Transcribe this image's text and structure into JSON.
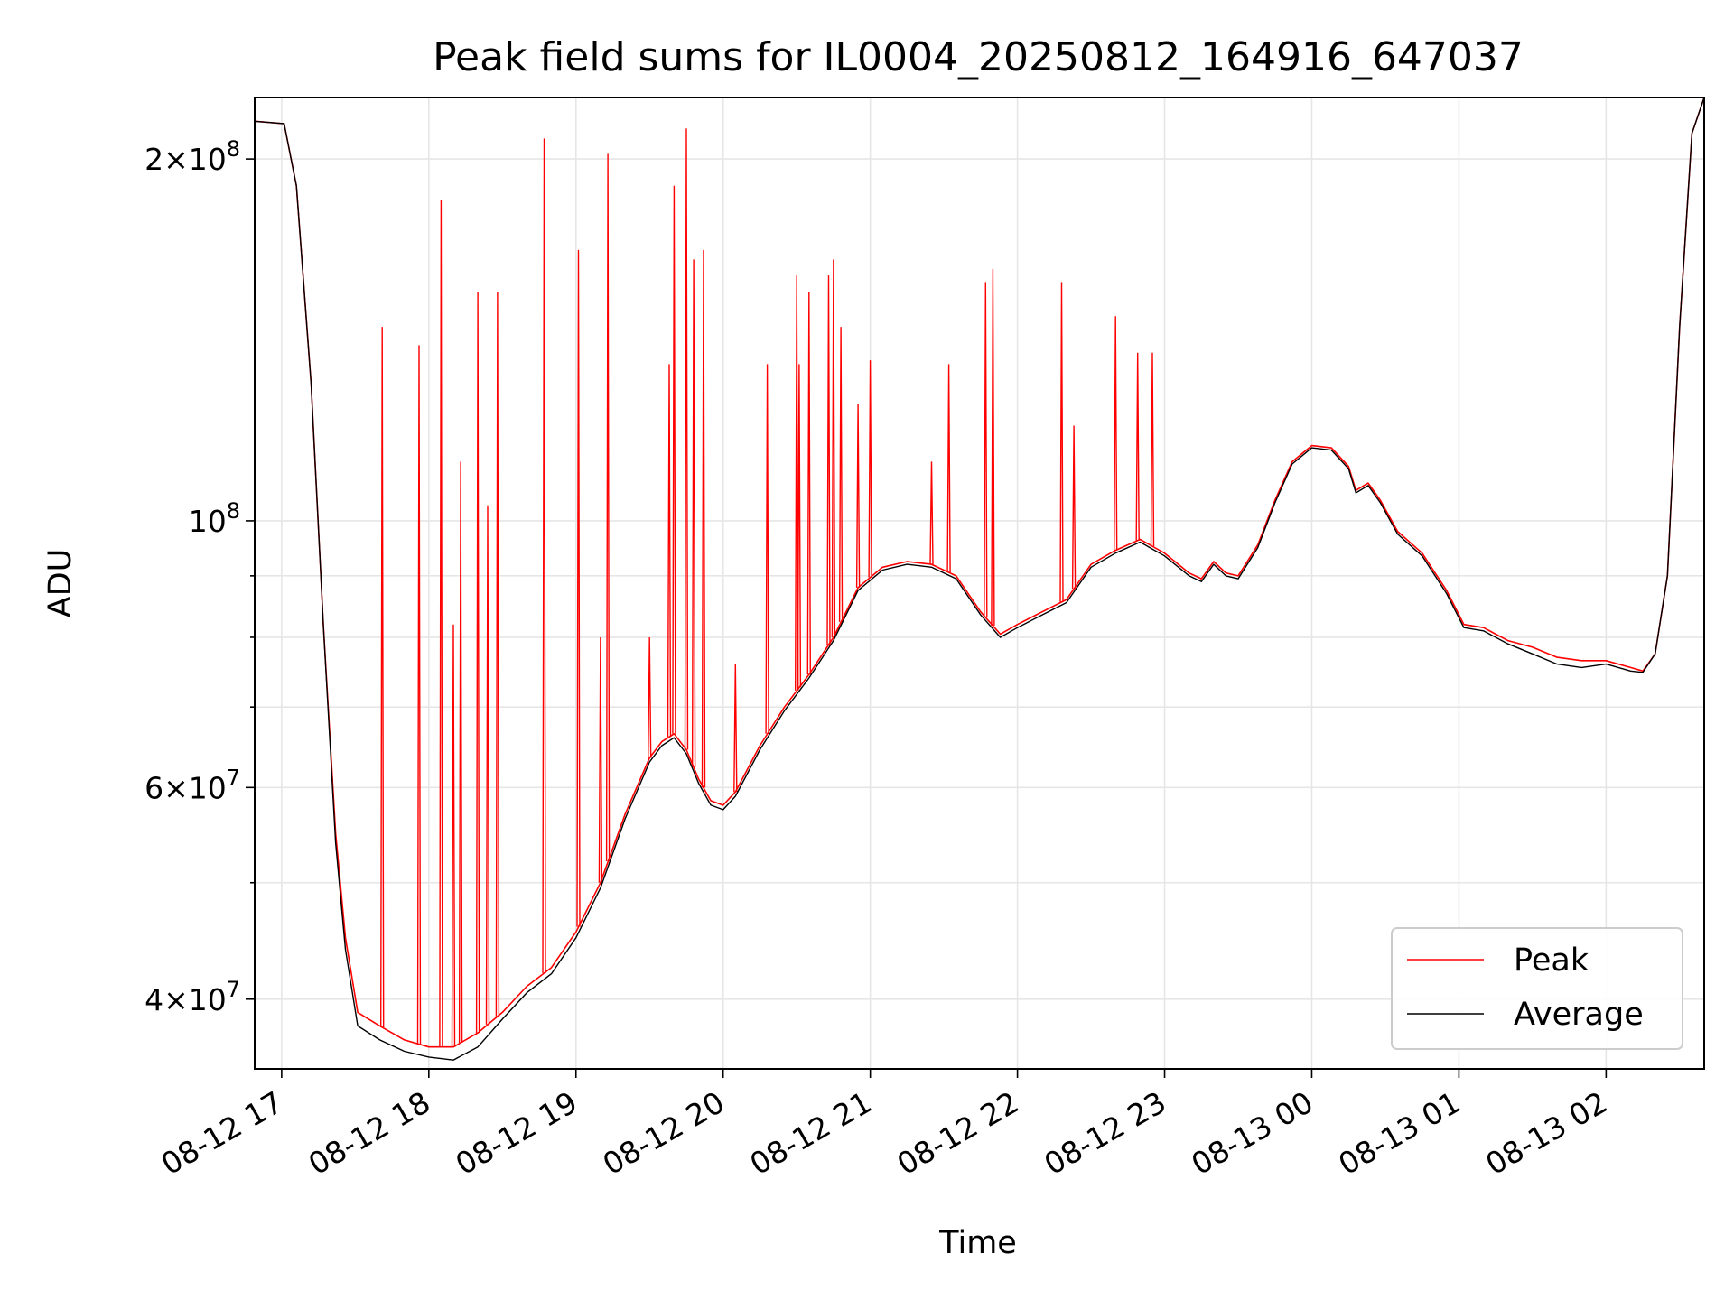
{
  "chart_data": {
    "type": "line",
    "title": "Peak field sums for IL0004_20250812_164916_647037",
    "xlabel": "Time",
    "ylabel": "ADU",
    "y_scale": "log",
    "ylim": [
      35000000,
      225000000
    ],
    "xlim": [
      "2025-08-12 16:49",
      "2025-08-13 02:40"
    ],
    "grid": true,
    "legend_position": "lower-right",
    "x_ticks": [
      {
        "t": "2025-08-12 17:00",
        "label": "08-12 17"
      },
      {
        "t": "2025-08-12 18:00",
        "label": "08-12 18"
      },
      {
        "t": "2025-08-12 19:00",
        "label": "08-12 19"
      },
      {
        "t": "2025-08-12 20:00",
        "label": "08-12 20"
      },
      {
        "t": "2025-08-12 21:00",
        "label": "08-12 21"
      },
      {
        "t": "2025-08-12 22:00",
        "label": "08-12 22"
      },
      {
        "t": "2025-08-12 23:00",
        "label": "08-12 23"
      },
      {
        "t": "2025-08-13 00:00",
        "label": "08-13 00"
      },
      {
        "t": "2025-08-13 01:00",
        "label": "08-13 01"
      },
      {
        "t": "2025-08-13 02:00",
        "label": "08-13 02"
      }
    ],
    "y_ticks": [
      {
        "v": 40000000,
        "mant": "4",
        "exp": "7"
      },
      {
        "v": 60000000,
        "mant": "6",
        "exp": "7"
      },
      {
        "v": 100000000,
        "mant": "",
        "exp": "8"
      },
      {
        "v": 200000000,
        "mant": "2",
        "exp": "8"
      }
    ],
    "y_minor_ticks": [
      50000000,
      70000000,
      80000000,
      90000000
    ],
    "series": [
      {
        "name": "Peak",
        "color": "#ff0000",
        "baseline": [
          [
            "2025-08-12 16:49",
            215000000
          ],
          [
            "2025-08-12 17:01",
            214000000
          ],
          [
            "2025-08-12 17:06",
            190000000
          ],
          [
            "2025-08-12 17:12",
            130000000
          ],
          [
            "2025-08-12 17:17",
            82000000
          ],
          [
            "2025-08-12 17:22",
            55000000
          ],
          [
            "2025-08-12 17:26",
            45000000
          ],
          [
            "2025-08-12 17:31",
            39000000
          ],
          [
            "2025-08-12 17:40",
            38000000
          ],
          [
            "2025-08-12 17:50",
            37000000
          ],
          [
            "2025-08-12 18:00",
            36500000
          ],
          [
            "2025-08-12 18:10",
            36500000
          ],
          [
            "2025-08-12 18:20",
            37500000
          ],
          [
            "2025-08-12 18:30",
            39000000
          ],
          [
            "2025-08-12 18:40",
            41000000
          ],
          [
            "2025-08-12 18:50",
            42500000
          ],
          [
            "2025-08-12 19:00",
            45500000
          ],
          [
            "2025-08-12 19:10",
            50000000
          ],
          [
            "2025-08-12 19:20",
            57000000
          ],
          [
            "2025-08-12 19:30",
            63500000
          ],
          [
            "2025-08-12 19:35",
            65500000
          ],
          [
            "2025-08-12 19:40",
            66500000
          ],
          [
            "2025-08-12 19:45",
            64500000
          ],
          [
            "2025-08-12 19:50",
            61000000
          ],
          [
            "2025-08-12 19:55",
            58500000
          ],
          [
            "2025-08-12 20:00",
            58000000
          ],
          [
            "2025-08-12 20:05",
            59500000
          ],
          [
            "2025-08-12 20:15",
            65000000
          ],
          [
            "2025-08-12 20:25",
            70000000
          ],
          [
            "2025-08-12 20:35",
            74500000
          ],
          [
            "2025-08-12 20:45",
            80000000
          ],
          [
            "2025-08-12 20:55",
            88000000
          ],
          [
            "2025-08-12 21:05",
            91500000
          ],
          [
            "2025-08-12 21:15",
            92500000
          ],
          [
            "2025-08-12 21:25",
            92000000
          ],
          [
            "2025-08-12 21:35",
            90000000
          ],
          [
            "2025-08-12 21:45",
            84000000
          ],
          [
            "2025-08-12 21:53",
            80500000
          ],
          [
            "2025-08-12 22:00",
            82000000
          ],
          [
            "2025-08-12 22:10",
            84000000
          ],
          [
            "2025-08-12 22:20",
            86000000
          ],
          [
            "2025-08-12 22:30",
            92000000
          ],
          [
            "2025-08-12 22:40",
            94500000
          ],
          [
            "2025-08-12 22:50",
            96500000
          ],
          [
            "2025-08-12 23:00",
            94000000
          ],
          [
            "2025-08-12 23:10",
            90500000
          ],
          [
            "2025-08-12 23:15",
            89500000
          ],
          [
            "2025-08-12 23:20",
            92500000
          ],
          [
            "2025-08-12 23:25",
            90500000
          ],
          [
            "2025-08-12 23:30",
            90000000
          ],
          [
            "2025-08-12 23:38",
            95500000
          ],
          [
            "2025-08-12 23:45",
            104000000
          ],
          [
            "2025-08-12 23:52",
            112000000
          ],
          [
            "2025-08-13 00:00",
            115500000
          ],
          [
            "2025-08-13 00:08",
            115000000
          ],
          [
            "2025-08-13 00:15",
            111000000
          ],
          [
            "2025-08-13 00:18",
            106000000
          ],
          [
            "2025-08-13 00:23",
            107500000
          ],
          [
            "2025-08-13 00:28",
            104000000
          ],
          [
            "2025-08-13 00:35",
            98000000
          ],
          [
            "2025-08-13 00:45",
            94000000
          ],
          [
            "2025-08-13 00:55",
            87500000
          ],
          [
            "2025-08-13 01:02",
            82000000
          ],
          [
            "2025-08-13 01:10",
            81500000
          ],
          [
            "2025-08-13 01:20",
            79500000
          ],
          [
            "2025-08-13 01:30",
            78500000
          ],
          [
            "2025-08-13 01:40",
            77000000
          ],
          [
            "2025-08-13 01:50",
            76500000
          ],
          [
            "2025-08-13 02:00",
            76500000
          ],
          [
            "2025-08-13 02:10",
            75500000
          ],
          [
            "2025-08-13 02:15",
            75000000
          ],
          [
            "2025-08-13 02:20",
            77500000
          ],
          [
            "2025-08-13 02:25",
            90000000
          ],
          [
            "2025-08-13 02:30",
            145000000
          ],
          [
            "2025-08-13 02:35",
            210000000
          ],
          [
            "2025-08-13 02:40",
            225000000
          ]
        ],
        "spikes": [
          [
            "2025-08-12 17:41",
            145000000
          ],
          [
            "2025-08-12 17:56",
            140000000
          ],
          [
            "2025-08-12 18:05",
            185000000
          ],
          [
            "2025-08-12 18:10",
            82000000
          ],
          [
            "2025-08-12 18:13",
            112000000
          ],
          [
            "2025-08-12 18:20",
            155000000
          ],
          [
            "2025-08-12 18:24",
            103000000
          ],
          [
            "2025-08-12 18:28",
            155000000
          ],
          [
            "2025-08-12 18:47",
            208000000
          ],
          [
            "2025-08-12 19:01",
            168000000
          ],
          [
            "2025-08-12 19:10",
            80000000
          ],
          [
            "2025-08-12 19:13",
            202000000
          ],
          [
            "2025-08-12 19:30",
            80000000
          ],
          [
            "2025-08-12 19:38",
            135000000
          ],
          [
            "2025-08-12 19:40",
            190000000
          ],
          [
            "2025-08-12 19:45",
            212000000
          ],
          [
            "2025-08-12 19:48",
            165000000
          ],
          [
            "2025-08-12 19:52",
            168000000
          ],
          [
            "2025-08-12 20:05",
            76000000
          ],
          [
            "2025-08-12 20:18",
            135000000
          ],
          [
            "2025-08-12 20:30",
            160000000
          ],
          [
            "2025-08-12 20:31",
            135000000
          ],
          [
            "2025-08-12 20:35",
            155000000
          ],
          [
            "2025-08-12 20:43",
            160000000
          ],
          [
            "2025-08-12 20:45",
            165000000
          ],
          [
            "2025-08-12 20:48",
            145000000
          ],
          [
            "2025-08-12 20:55",
            125000000
          ],
          [
            "2025-08-12 21:00",
            136000000
          ],
          [
            "2025-08-12 21:25",
            112000000
          ],
          [
            "2025-08-12 21:32",
            135000000
          ],
          [
            "2025-08-12 21:47",
            158000000
          ],
          [
            "2025-08-12 21:50",
            162000000
          ],
          [
            "2025-08-12 22:18",
            158000000
          ],
          [
            "2025-08-12 22:23",
            120000000
          ],
          [
            "2025-08-12 22:40",
            148000000
          ],
          [
            "2025-08-12 22:49",
            138000000
          ],
          [
            "2025-08-12 22:55",
            138000000
          ]
        ]
      },
      {
        "name": "Average",
        "color": "#000000",
        "baseline": [
          [
            "2025-08-12 16:49",
            215000000
          ],
          [
            "2025-08-12 17:01",
            214000000
          ],
          [
            "2025-08-12 17:06",
            190000000
          ],
          [
            "2025-08-12 17:12",
            130000000
          ],
          [
            "2025-08-12 17:17",
            82000000
          ],
          [
            "2025-08-12 17:22",
            54000000
          ],
          [
            "2025-08-12 17:26",
            44000000
          ],
          [
            "2025-08-12 17:31",
            38000000
          ],
          [
            "2025-08-12 17:40",
            37000000
          ],
          [
            "2025-08-12 17:50",
            36200000
          ],
          [
            "2025-08-12 18:00",
            35800000
          ],
          [
            "2025-08-12 18:10",
            35600000
          ],
          [
            "2025-08-12 18:20",
            36500000
          ],
          [
            "2025-08-12 18:30",
            38500000
          ],
          [
            "2025-08-12 18:40",
            40500000
          ],
          [
            "2025-08-12 18:50",
            42000000
          ],
          [
            "2025-08-12 19:00",
            45000000
          ],
          [
            "2025-08-12 19:10",
            49500000
          ],
          [
            "2025-08-12 19:20",
            56500000
          ],
          [
            "2025-08-12 19:30",
            63000000
          ],
          [
            "2025-08-12 19:35",
            65000000
          ],
          [
            "2025-08-12 19:40",
            66000000
          ],
          [
            "2025-08-12 19:45",
            64000000
          ],
          [
            "2025-08-12 19:50",
            60500000
          ],
          [
            "2025-08-12 19:55",
            58000000
          ],
          [
            "2025-08-12 20:00",
            57500000
          ],
          [
            "2025-08-12 20:05",
            59000000
          ],
          [
            "2025-08-12 20:15",
            64500000
          ],
          [
            "2025-08-12 20:25",
            69500000
          ],
          [
            "2025-08-12 20:35",
            74000000
          ],
          [
            "2025-08-12 20:45",
            79500000
          ],
          [
            "2025-08-12 20:55",
            87500000
          ],
          [
            "2025-08-12 21:05",
            91000000
          ],
          [
            "2025-08-12 21:15",
            92000000
          ],
          [
            "2025-08-12 21:25",
            91500000
          ],
          [
            "2025-08-12 21:35",
            89500000
          ],
          [
            "2025-08-12 21:45",
            83500000
          ],
          [
            "2025-08-12 21:53",
            80000000
          ],
          [
            "2025-08-12 22:00",
            81500000
          ],
          [
            "2025-08-12 22:10",
            83500000
          ],
          [
            "2025-08-12 22:20",
            85500000
          ],
          [
            "2025-08-12 22:30",
            91500000
          ],
          [
            "2025-08-12 22:40",
            94000000
          ],
          [
            "2025-08-12 22:50",
            96000000
          ],
          [
            "2025-08-12 23:00",
            93500000
          ],
          [
            "2025-08-12 23:10",
            90000000
          ],
          [
            "2025-08-12 23:15",
            89000000
          ],
          [
            "2025-08-12 23:20",
            92000000
          ],
          [
            "2025-08-12 23:25",
            90000000
          ],
          [
            "2025-08-12 23:30",
            89500000
          ],
          [
            "2025-08-12 23:38",
            95000000
          ],
          [
            "2025-08-12 23:45",
            103500000
          ],
          [
            "2025-08-12 23:52",
            111500000
          ],
          [
            "2025-08-13 00:00",
            115000000
          ],
          [
            "2025-08-13 00:08",
            114500000
          ],
          [
            "2025-08-13 00:15",
            110500000
          ],
          [
            "2025-08-13 00:18",
            105500000
          ],
          [
            "2025-08-13 00:23",
            107000000
          ],
          [
            "2025-08-13 00:28",
            103500000
          ],
          [
            "2025-08-13 00:35",
            97500000
          ],
          [
            "2025-08-13 00:45",
            93500000
          ],
          [
            "2025-08-13 00:55",
            87000000
          ],
          [
            "2025-08-13 01:02",
            81500000
          ],
          [
            "2025-08-13 01:10",
            81000000
          ],
          [
            "2025-08-13 01:20",
            79000000
          ],
          [
            "2025-08-13 01:30",
            77500000
          ],
          [
            "2025-08-13 01:40",
            76000000
          ],
          [
            "2025-08-13 01:50",
            75500000
          ],
          [
            "2025-08-13 02:00",
            76000000
          ],
          [
            "2025-08-13 02:10",
            75000000
          ],
          [
            "2025-08-13 02:15",
            74800000
          ],
          [
            "2025-08-13 02:20",
            77500000
          ],
          [
            "2025-08-13 02:25",
            90000000
          ],
          [
            "2025-08-13 02:30",
            145000000
          ],
          [
            "2025-08-13 02:35",
            210000000
          ],
          [
            "2025-08-13 02:40",
            225000000
          ]
        ],
        "spikes": []
      }
    ]
  }
}
